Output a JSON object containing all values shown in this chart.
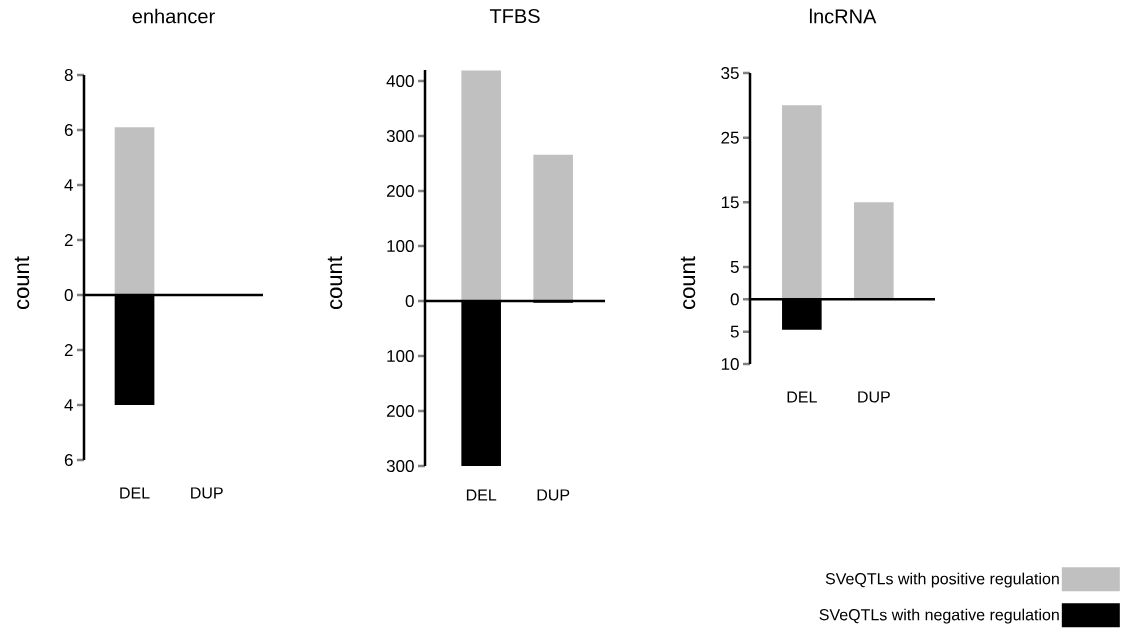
{
  "chart_data": [
    {
      "type": "bar",
      "title": "enhancer",
      "ylabel": "count",
      "categories": [
        "DEL",
        "DUP"
      ],
      "stacked": true,
      "series": [
        {
          "color": "#c0c0c0",
          "values": [
            6.1,
            0
          ]
        },
        {
          "color": "#000000",
          "values": [
            -4,
            0
          ]
        }
      ],
      "ylim": [
        -6,
        8
      ],
      "yticks": [
        8,
        6,
        4,
        2,
        0,
        {
          "value": -2,
          "label": "2"
        },
        {
          "value": -4,
          "label": "4"
        },
        {
          "value": -6,
          "label": "6"
        }
      ]
    },
    {
      "type": "bar",
      "title": "TFBS",
      "ylabel": "count",
      "categories": [
        "DEL",
        "DUP"
      ],
      "stacked": true,
      "series": [
        {
          "color": "#c0c0c0",
          "values": [
            419,
            266
          ]
        },
        {
          "color": "#000000",
          "values": [
            -300,
            -3
          ]
        }
      ],
      "ylim": [
        -300,
        420
      ],
      "yticks": [
        400,
        300,
        200,
        100,
        0,
        {
          "value": -100,
          "label": "100"
        },
        {
          "value": -200,
          "label": "200"
        },
        {
          "value": -300,
          "label": "300"
        }
      ]
    },
    {
      "type": "bar",
      "title": "lncRNA",
      "ylabel": "count",
      "categories": [
        "DEL",
        "DUP"
      ],
      "stacked": true,
      "legend": "bottom right",
      "series": [
        {
          "name": "SVeQTLs with positive regulation",
          "color": "#c0c0c0",
          "values": [
            30,
            15
          ]
        },
        {
          "name": "SVeQTLs with negative regulation",
          "color": "#000000",
          "values": [
            -4.7,
            0
          ]
        }
      ],
      "ylim": [
        -10,
        35
      ],
      "yticks": [
        35,
        25,
        15,
        5,
        0,
        {
          "value": -5,
          "label": "5"
        },
        {
          "value": -10,
          "label": "10"
        }
      ]
    }
  ]
}
